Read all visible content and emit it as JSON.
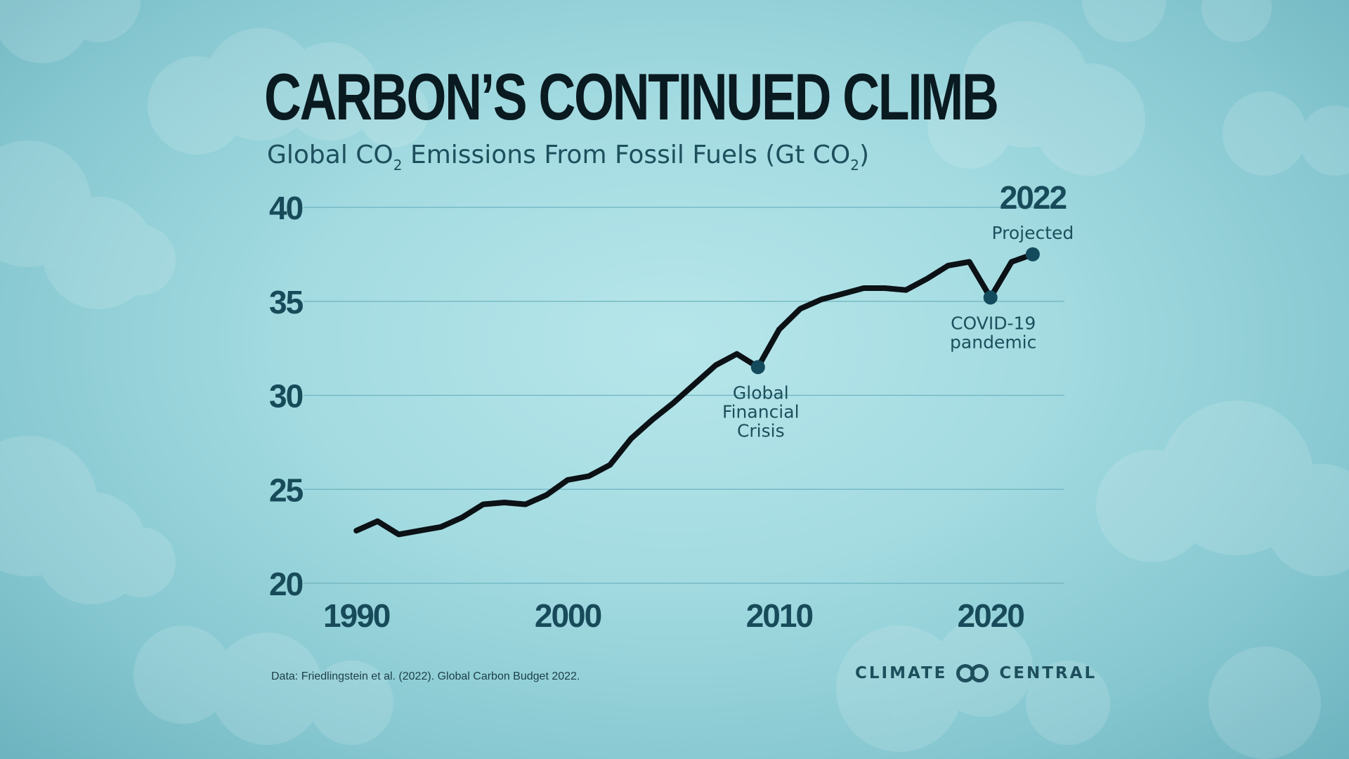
{
  "title": "CARBON’S CONTINUED CLIMB",
  "subtitle": {
    "pre": "Global CO",
    "sub1": "2",
    "mid": " Emissions From Fossil Fuels (Gt CO",
    "sub2": "2",
    "post": ")"
  },
  "source": "Data: Friedlingstein et al. (2022). Global Carbon Budget 2022.",
  "logo": {
    "left_word": "CLIMATE",
    "right_word": "CENTRAL",
    "icon": "linked-circles-icon"
  },
  "colors": {
    "line": "#0b1115",
    "marker": "#134a5c",
    "grid": "#6fb3bf",
    "tick_label": "#184b5a",
    "annotation": "#1d4f5c"
  },
  "chart_data": {
    "type": "line",
    "title": "CARBON’S CONTINUED CLIMB",
    "subtitle": "Global CO2 Emissions From Fossil Fuels (Gt CO2)",
    "xlabel": "",
    "ylabel": "",
    "xlim": [
      1987.5,
      2023.5
    ],
    "ylim": [
      20,
      40
    ],
    "grid": true,
    "x_ticks": [
      1990,
      2000,
      2010,
      2020
    ],
    "y_ticks": [
      20,
      25,
      30,
      35,
      40
    ],
    "series": [
      {
        "x": [
          1990,
          1991,
          1992,
          1993,
          1994,
          1995,
          1996,
          1997,
          1998,
          1999,
          2000,
          2001,
          2002,
          2003,
          2004,
          2005,
          2006,
          2007,
          2008,
          2009,
          2010,
          2011,
          2012,
          2013,
          2014,
          2015,
          2016,
          2017,
          2018,
          2019,
          2020,
          2021,
          2022
        ],
        "values": [
          22.8,
          23.3,
          22.6,
          22.8,
          23.0,
          23.5,
          24.2,
          24.3,
          24.2,
          24.7,
          25.5,
          25.7,
          26.3,
          27.7,
          28.7,
          29.6,
          30.6,
          31.6,
          32.2,
          31.5,
          33.5,
          34.6,
          35.1,
          35.4,
          35.7,
          35.7,
          35.6,
          36.2,
          36.9,
          37.1,
          35.2,
          37.1,
          37.5
        ]
      }
    ],
    "highlights": [
      {
        "x": 2009,
        "y": 31.5,
        "label_lines": [
          "Global",
          "Financial",
          "Crisis"
        ]
      },
      {
        "x": 2020,
        "y": 35.2,
        "label_lines": [
          "COVID-19",
          "pandemic"
        ]
      },
      {
        "x": 2022,
        "y": 37.5,
        "heading": "2022",
        "label_lines": [
          "Projected"
        ]
      }
    ]
  }
}
